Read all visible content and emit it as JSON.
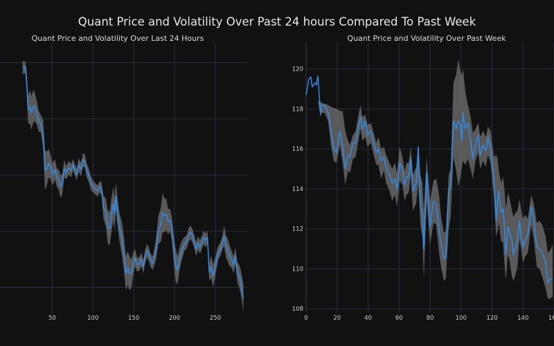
{
  "title": "Quant Price and Volatility Over Past 24 hours Compared To Past Week",
  "colors": {
    "background": "#111111",
    "line": "#2f8ce8",
    "band": "#6e6e6e",
    "grid": "#263040",
    "text": "#e8e8e8"
  },
  "chart_data": [
    {
      "type": "line",
      "title": "Quant Price and Volatility Over Last 24 Hours",
      "xlabel": "",
      "ylabel": "",
      "xlim": [
        -14,
        290
      ],
      "ylim": [
        -0.45,
        4.35
      ],
      "y_units_note": "y-axis tick labels not visible; values in gridline units (bottom visible gridline = 0)",
      "xticks": [
        50,
        100,
        150,
        200,
        250
      ],
      "yticks": [
        0,
        1,
        2,
        3,
        4
      ],
      "ytick_labels": [
        "",
        "",
        "",
        "",
        ""
      ],
      "grid": true,
      "legend": "none",
      "series": [
        {
          "name": "price",
          "x": [
            13.7,
            16.8,
            18.3,
            20.6,
            22.9,
            24.4,
            27.5,
            30.5,
            33.6,
            35.9,
            39,
            41.2,
            43.5,
            45.8,
            48.1,
            50.3,
            53.4,
            55.7,
            58,
            60.2,
            62.6,
            64.8,
            67.1,
            70.2,
            73.2,
            75.5,
            77.8,
            80.1,
            82.4,
            85.4,
            87.7,
            90,
            92.3,
            94.6,
            97.6,
            100.7,
            103.7,
            106,
            108.3,
            110.6,
            112.9,
            115.9,
            118.2,
            120.5,
            122.8,
            125.1,
            126.6,
            128.1,
            130.4,
            132.7,
            135.8,
            138.1,
            140.3,
            142.6,
            144.9,
            147.2,
            149.5,
            151.8,
            154.1,
            157.1,
            159.4,
            161.7,
            164,
            166.3,
            168.6,
            170.9,
            173.2,
            175.4,
            177.7,
            180,
            183.1,
            185.4,
            187.7,
            190,
            192.2,
            194.5,
            196.8,
            199.1,
            201.4,
            203.7,
            206,
            208.3,
            210.6,
            212.8,
            215.1,
            217.4,
            219.7,
            222,
            224.3,
            226.6,
            228.8,
            231.1,
            233.4,
            235.7,
            238,
            240.3,
            242.6,
            244.9,
            247.2,
            249.5,
            251.8,
            254,
            256.3,
            258.6,
            260.9,
            263.2,
            265.5,
            267.8,
            270.1,
            272.4,
            274.6,
            276.9,
            279.2,
            281.5,
            284.5
          ],
          "y": [
            3.91,
            3.92,
            3.75,
            3.17,
            3.21,
            3.11,
            3.24,
            3.14,
            2.95,
            2.92,
            2.72,
            2.08,
            2.12,
            2.21,
            2.14,
            2.01,
            2.1,
            1.95,
            1.92,
            1.79,
            1.85,
            2.12,
            2.04,
            2.13,
            2.08,
            2.18,
            2.1,
            2.01,
            2.18,
            2.1,
            2.27,
            2.25,
            2.08,
            2.01,
            1.85,
            1.79,
            1.74,
            1.72,
            1.79,
            1.75,
            1.43,
            1.33,
            1.07,
            1.05,
            1.3,
            1.5,
            1.3,
            1.63,
            1.3,
            1.05,
            0.85,
            0.59,
            0.25,
            0.35,
            0.25,
            0.25,
            0.43,
            0.53,
            0.4,
            0.43,
            0.5,
            0.37,
            0.55,
            0.66,
            0.59,
            0.48,
            0.43,
            0.55,
            0.72,
            1.02,
            1.11,
            1.33,
            1.28,
            1.3,
            1.17,
            1.2,
            1.05,
            0.66,
            0.4,
            0.3,
            0.5,
            0.63,
            0.72,
            0.79,
            0.81,
            0.94,
            0.98,
            0.92,
            0.81,
            0.68,
            0.79,
            0.72,
            0.79,
            0.89,
            0.84,
            0.89,
            0.27,
            0.37,
            0.21,
            0.34,
            0.5,
            0.63,
            0.68,
            0.79,
            0.92,
            0.72,
            0.66,
            0.55,
            0.5,
            0.4,
            0.57,
            0.27,
            0.21,
            0.08,
            -0.19
          ],
          "volatility": [
            0.12,
            0.1,
            0.15,
            0.25,
            0.3,
            0.3,
            0.28,
            0.22,
            0.18,
            0.16,
            0.25,
            0.35,
            0.3,
            0.25,
            0.22,
            0.2,
            0.18,
            0.16,
            0.18,
            0.2,
            0.18,
            0.15,
            0.12,
            0.12,
            0.12,
            0.1,
            0.1,
            0.1,
            0.12,
            0.12,
            0.12,
            0.12,
            0.12,
            0.12,
            0.12,
            0.1,
            0.1,
            0.1,
            0.1,
            0.12,
            0.2,
            0.25,
            0.3,
            0.3,
            0.3,
            0.3,
            0.28,
            0.25,
            0.25,
            0.25,
            0.3,
            0.3,
            0.3,
            0.3,
            0.3,
            0.25,
            0.2,
            0.15,
            0.12,
            0.12,
            0.12,
            0.12,
            0.12,
            0.12,
            0.12,
            0.12,
            0.12,
            0.15,
            0.2,
            0.25,
            0.3,
            0.35,
            0.3,
            0.28,
            0.22,
            0.2,
            0.2,
            0.25,
            0.3,
            0.25,
            0.2,
            0.18,
            0.15,
            0.12,
            0.12,
            0.12,
            0.12,
            0.12,
            0.12,
            0.12,
            0.12,
            0.12,
            0.12,
            0.12,
            0.12,
            0.12,
            0.15,
            0.2,
            0.2,
            0.18,
            0.15,
            0.12,
            0.12,
            0.12,
            0.18,
            0.2,
            0.2,
            0.18,
            0.15,
            0.15,
            0.15,
            0.18,
            0.2,
            0.22,
            0.25
          ]
        }
      ]
    },
    {
      "type": "line",
      "title": "Quant Price and Volatility Over Past Week",
      "xlabel": "",
      "ylabel": "",
      "xlim": [
        0,
        160
      ],
      "ylim": [
        107.8,
        121.3
      ],
      "xticks": [
        0,
        20,
        40,
        60,
        80,
        100,
        120,
        140,
        160
      ],
      "xtick_labels": [
        "0",
        "20",
        "40",
        "60",
        "80",
        "100",
        "120",
        "140",
        "160"
      ],
      "yticks": [
        108,
        110,
        112,
        114,
        116,
        118,
        120
      ],
      "ytick_labels": [
        "108",
        "110",
        "112",
        "114",
        "116",
        "118",
        "120"
      ],
      "grid": true,
      "legend": "none",
      "series": [
        {
          "name": "price",
          "x": [
            0,
            1.8,
            3.1,
            4,
            5.8,
            6.7,
            7.6,
            9.3,
            10.2,
            12,
            14.2,
            16,
            17.8,
            19.6,
            21.8,
            23.6,
            25.3,
            27.1,
            28.4,
            30.2,
            32,
            33.8,
            35.1,
            36.4,
            38.2,
            39.6,
            41.8,
            43.6,
            45.3,
            46.7,
            48.4,
            50.2,
            51.6,
            53.8,
            55.6,
            57.3,
            58.7,
            60.4,
            62.2,
            63.6,
            64.9,
            66.2,
            67.6,
            68.9,
            71.1,
            72.4,
            73.8,
            75.1,
            76,
            77.8,
            80,
            82.2,
            84,
            85.8,
            87.1,
            88.9,
            90.2,
            92,
            93.3,
            95.1,
            96.9,
            98.2,
            99.6,
            100.4,
            101.3,
            102.7,
            104.4,
            106.2,
            107.6,
            109.3,
            111.1,
            112.4,
            114.2,
            116,
            117.3,
            119.1,
            121.3,
            122.7,
            123.6,
            124.4,
            125.8,
            127.1,
            128,
            128.9,
            130.2,
            131.1,
            132.9,
            133.8,
            135.1,
            136.4,
            137.8,
            139.1,
            140,
            141.3,
            143.1,
            145.3,
            147.1,
            148.9,
            150.7,
            152.4,
            154.7,
            156,
            157.3,
            159.1
          ],
          "y": [
            118.7,
            119.5,
            119.6,
            119.1,
            119.3,
            119.2,
            119.65,
            117.8,
            118.2,
            118.2,
            117.8,
            117.0,
            116.0,
            115.8,
            116.9,
            116.1,
            115.0,
            115.7,
            115.6,
            116.3,
            116.3,
            117.1,
            117.6,
            117.0,
            117.4,
            116.7,
            116.9,
            116.3,
            115.8,
            116.0,
            115.4,
            115.6,
            115.1,
            114.7,
            114.3,
            114.5,
            114.0,
            115.3,
            115.0,
            114.2,
            114.6,
            114.6,
            115.5,
            113.9,
            114.3,
            116.1,
            113.2,
            112.7,
            111.0,
            114.8,
            112.1,
            113.4,
            113.2,
            112.0,
            111.3,
            110.5,
            110.6,
            113.9,
            114.2,
            117.4,
            117.0,
            117.4,
            117.2,
            116.4,
            117.8,
            117.0,
            117.3,
            116.4,
            115.5,
            116.2,
            116.7,
            115.7,
            116.2,
            115.9,
            116.6,
            116.0,
            114.4,
            112.4,
            113.4,
            113.9,
            112.8,
            113.0,
            112.1,
            110.7,
            112.1,
            111.9,
            111.4,
            110.7,
            111.0,
            111.4,
            112.4,
            111.5,
            111.1,
            111.4,
            111.7,
            113.1,
            112.4,
            111.1,
            111.0,
            110.8,
            110.3,
            109.3,
            109.5,
            109.5
          ],
          "upper": [
            118.7,
            118.65,
            118.6,
            118.55,
            118.5,
            118.45,
            118.4,
            118.35,
            118.3,
            118.25,
            118.2,
            118.1,
            118.05,
            118.0,
            117.9,
            117.9,
            116.9,
            116.4,
            116.2,
            116.7,
            116.9,
            117.7,
            118.2,
            117.6,
            117.7,
            117.2,
            117.3,
            116.8,
            116.3,
            116.6,
            116.0,
            116.1,
            115.7,
            115.3,
            115.0,
            115.3,
            114.8,
            116.1,
            115.6,
            114.9,
            115.3,
            115.3,
            116.1,
            114.7,
            115.1,
            116.2,
            114.7,
            114.3,
            112.9,
            115.6,
            113.4,
            114.4,
            114.5,
            113.7,
            112.6,
            111.8,
            111.9,
            114.7,
            115.0,
            119.3,
            119.7,
            120.5,
            119.9,
            119.7,
            120.0,
            118.9,
            118.2,
            117.6,
            116.8,
            117.0,
            117.3,
            116.6,
            116.9,
            116.6,
            117.1,
            116.9,
            115.6,
            115.7,
            115.5,
            114.9,
            114.3,
            114.6,
            114.0,
            113.0,
            113.8,
            113.6,
            112.9,
            112.6,
            112.8,
            112.9,
            113.5,
            112.8,
            112.5,
            112.7,
            112.5,
            113.7,
            113.2,
            112.3,
            112.4,
            112.2,
            111.6,
            110.8,
            110.9,
            111.2
          ],
          "lower": [
            118.7,
            118.65,
            118.6,
            118.55,
            118.5,
            118.45,
            118.4,
            117.6,
            117.8,
            117.8,
            117.4,
            116.2,
            115.4,
            115.3,
            116.2,
            115.3,
            114.2,
            114.9,
            114.8,
            115.5,
            115.6,
            116.4,
            117.0,
            116.4,
            116.6,
            116.1,
            116.3,
            115.7,
            115.2,
            115.2,
            114.5,
            114.9,
            114.3,
            113.9,
            113.4,
            113.7,
            113.1,
            114.4,
            114.2,
            113.4,
            113.7,
            113.8,
            114.7,
            112.9,
            113.3,
            114.3,
            112.2,
            111.6,
            109.5,
            113.4,
            111.2,
            112.3,
            112.2,
            110.8,
            110.1,
            109.4,
            109.5,
            112.0,
            112.6,
            115.6,
            114.9,
            114.1,
            114.6,
            115.0,
            115.4,
            115.2,
            115.5,
            115.0,
            114.5,
            115.4,
            115.8,
            115.0,
            115.4,
            115.1,
            115.7,
            115.3,
            113.5,
            111.6,
            111.9,
            112.3,
            111.4,
            111.3,
            110.3,
            109.4,
            110.7,
            110.5,
            109.6,
            109.4,
            109.7,
            110.1,
            111.5,
            110.8,
            110.3,
            110.6,
            110.8,
            112.2,
            111.4,
            110.1,
            110.0,
            109.6,
            109.0,
            108.5,
            108.5,
            108.6
          ]
        }
      ]
    }
  ]
}
